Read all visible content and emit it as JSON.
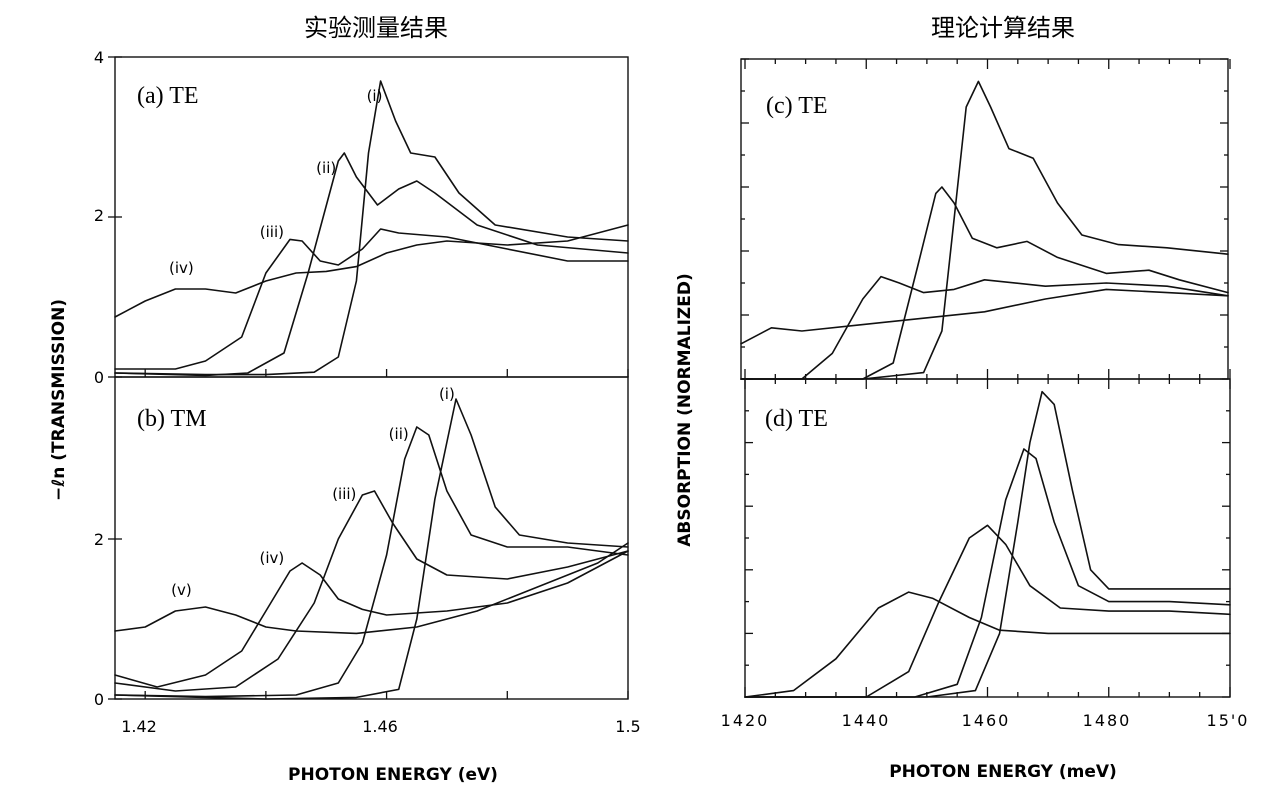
{
  "figure": {
    "left_header": "实验测量结果",
    "right_header": "理论计算结果"
  },
  "left": {
    "ylabel": "−ℓn (TRANSMISSION)",
    "xlabel": "PHOTON ENERGY (eV)",
    "xticks": [
      "1.42",
      "1.46",
      "1.5"
    ],
    "xlim": [
      1.415,
      1.5
    ],
    "top": {
      "panel_label": "(a) TE",
      "yticks": [
        "0",
        "2",
        "4"
      ],
      "ylim": [
        0,
        4
      ],
      "series": [
        {
          "label": "(i)",
          "points": [
            [
              1.415,
              0.05
            ],
            [
              1.43,
              0.03
            ],
            [
              1.44,
              0.03
            ],
            [
              1.448,
              0.06
            ],
            [
              1.452,
              0.25
            ],
            [
              1.455,
              1.2
            ],
            [
              1.457,
              2.8
            ],
            [
              1.459,
              3.7
            ],
            [
              1.4615,
              3.2
            ],
            [
              1.464,
              2.8
            ],
            [
              1.468,
              2.75
            ],
            [
              1.472,
              2.3
            ],
            [
              1.478,
              1.9
            ],
            [
              1.49,
              1.75
            ],
            [
              1.5,
              1.7
            ]
          ]
        },
        {
          "label": "(ii)",
          "points": [
            [
              1.415,
              0.05
            ],
            [
              1.43,
              0.02
            ],
            [
              1.437,
              0.05
            ],
            [
              1.443,
              0.3
            ],
            [
              1.447,
              1.3
            ],
            [
              1.452,
              2.7
            ],
            [
              1.453,
              2.8
            ],
            [
              1.455,
              2.5
            ],
            [
              1.4585,
              2.15
            ],
            [
              1.462,
              2.35
            ],
            [
              1.465,
              2.45
            ],
            [
              1.468,
              2.3
            ],
            [
              1.475,
              1.9
            ],
            [
              1.485,
              1.65
            ],
            [
              1.5,
              1.55
            ]
          ]
        },
        {
          "label": "(iii)",
          "points": [
            [
              1.415,
              0.1
            ],
            [
              1.425,
              0.1
            ],
            [
              1.43,
              0.2
            ],
            [
              1.436,
              0.5
            ],
            [
              1.44,
              1.3
            ],
            [
              1.444,
              1.72
            ],
            [
              1.446,
              1.7
            ],
            [
              1.449,
              1.45
            ],
            [
              1.452,
              1.4
            ],
            [
              1.456,
              1.6
            ],
            [
              1.459,
              1.85
            ],
            [
              1.462,
              1.8
            ],
            [
              1.47,
              1.75
            ],
            [
              1.48,
              1.6
            ],
            [
              1.49,
              1.45
            ],
            [
              1.5,
              1.45
            ]
          ]
        },
        {
          "label": "(iv)",
          "points": [
            [
              1.415,
              0.75
            ],
            [
              1.42,
              0.95
            ],
            [
              1.425,
              1.1
            ],
            [
              1.43,
              1.1
            ],
            [
              1.435,
              1.05
            ],
            [
              1.44,
              1.2
            ],
            [
              1.445,
              1.3
            ],
            [
              1.45,
              1.32
            ],
            [
              1.455,
              1.38
            ],
            [
              1.46,
              1.55
            ],
            [
              1.465,
              1.65
            ],
            [
              1.47,
              1.7
            ],
            [
              1.48,
              1.65
            ],
            [
              1.49,
              1.7
            ],
            [
              1.5,
              1.9
            ]
          ]
        }
      ],
      "label_pos": [
        [
          1.458,
          3.45
        ],
        [
          1.45,
          2.55
        ],
        [
          1.441,
          1.75
        ],
        [
          1.426,
          1.3
        ]
      ]
    },
    "bottom": {
      "panel_label": "(b) TM",
      "yticks": [
        "0",
        "2"
      ],
      "ylim": [
        0,
        4
      ],
      "series": [
        {
          "label": "(i)",
          "points": [
            [
              1.415,
              0.05
            ],
            [
              1.43,
              0.02
            ],
            [
              1.44,
              0.0
            ],
            [
              1.455,
              0.02
            ],
            [
              1.462,
              0.12
            ],
            [
              1.465,
              1.0
            ],
            [
              1.468,
              2.5
            ],
            [
              1.4715,
              3.75
            ],
            [
              1.474,
              3.3
            ],
            [
              1.478,
              2.4
            ],
            [
              1.482,
              2.05
            ],
            [
              1.49,
              1.95
            ],
            [
              1.5,
              1.9
            ]
          ]
        },
        {
          "label": "(ii)",
          "points": [
            [
              1.415,
              0.05
            ],
            [
              1.43,
              0.03
            ],
            [
              1.445,
              0.05
            ],
            [
              1.452,
              0.2
            ],
            [
              1.456,
              0.7
            ],
            [
              1.46,
              1.8
            ],
            [
              1.463,
              3.0
            ],
            [
              1.465,
              3.4
            ],
            [
              1.467,
              3.3
            ],
            [
              1.47,
              2.6
            ],
            [
              1.474,
              2.05
            ],
            [
              1.48,
              1.9
            ],
            [
              1.49,
              1.9
            ],
            [
              1.5,
              1.8
            ]
          ]
        },
        {
          "label": "(iii)",
          "points": [
            [
              1.415,
              0.2
            ],
            [
              1.425,
              0.1
            ],
            [
              1.435,
              0.15
            ],
            [
              1.442,
              0.5
            ],
            [
              1.448,
              1.2
            ],
            [
              1.452,
              2.0
            ],
            [
              1.456,
              2.55
            ],
            [
              1.458,
              2.6
            ],
            [
              1.461,
              2.2
            ],
            [
              1.465,
              1.75
            ],
            [
              1.47,
              1.55
            ],
            [
              1.48,
              1.5
            ],
            [
              1.49,
              1.65
            ],
            [
              1.5,
              1.85
            ]
          ]
        },
        {
          "label": "(iv)",
          "points": [
            [
              1.415,
              0.3
            ],
            [
              1.422,
              0.15
            ],
            [
              1.43,
              0.3
            ],
            [
              1.436,
              0.6
            ],
            [
              1.44,
              1.1
            ],
            [
              1.444,
              1.6
            ],
            [
              1.446,
              1.7
            ],
            [
              1.449,
              1.55
            ],
            [
              1.452,
              1.25
            ],
            [
              1.456,
              1.12
            ],
            [
              1.46,
              1.05
            ],
            [
              1.47,
              1.1
            ],
            [
              1.48,
              1.2
            ],
            [
              1.49,
              1.45
            ],
            [
              1.5,
              1.85
            ]
          ]
        },
        {
          "label": "(v)",
          "points": [
            [
              1.415,
              0.85
            ],
            [
              1.42,
              0.9
            ],
            [
              1.425,
              1.1
            ],
            [
              1.43,
              1.15
            ],
            [
              1.435,
              1.05
            ],
            [
              1.44,
              0.9
            ],
            [
              1.445,
              0.85
            ],
            [
              1.455,
              0.82
            ],
            [
              1.465,
              0.9
            ],
            [
              1.475,
              1.1
            ],
            [
              1.485,
              1.4
            ],
            [
              1.495,
              1.7
            ],
            [
              1.5,
              1.95
            ]
          ]
        }
      ],
      "label_pos": [
        [
          1.47,
          3.75
        ],
        [
          1.462,
          3.25
        ],
        [
          1.453,
          2.5
        ],
        [
          1.441,
          1.7
        ],
        [
          1.426,
          1.3
        ]
      ]
    }
  },
  "right": {
    "ylabel": "ABSORPTION (NORMALIZED)",
    "xlabel": "PHOTON ENERGY (meV)",
    "xticks": [
      "1420",
      "1440",
      "1460",
      "1480",
      "15'0"
    ],
    "xlim": [
      1420,
      1500
    ],
    "top": {
      "panel_label": "(c) TE",
      "ylim": [
        0,
        1
      ],
      "series": [
        {
          "label": "",
          "points": [
            [
              1420,
              0.0
            ],
            [
              1440,
              0.0
            ],
            [
              1450,
              0.02
            ],
            [
              1453,
              0.15
            ],
            [
              1455,
              0.5
            ],
            [
              1457,
              0.85
            ],
            [
              1459,
              0.93
            ],
            [
              1461,
              0.85
            ],
            [
              1464,
              0.72
            ],
            [
              1468,
              0.69
            ],
            [
              1472,
              0.55
            ],
            [
              1476,
              0.45
            ],
            [
              1482,
              0.42
            ],
            [
              1490,
              0.41
            ],
            [
              1500,
              0.39
            ]
          ]
        },
        {
          "label": "",
          "points": [
            [
              1420,
              0.0
            ],
            [
              1440,
              0.0
            ],
            [
              1445,
              0.05
            ],
            [
              1449,
              0.35
            ],
            [
              1452,
              0.58
            ],
            [
              1453,
              0.6
            ],
            [
              1455,
              0.55
            ],
            [
              1458,
              0.44
            ],
            [
              1462,
              0.41
            ],
            [
              1467,
              0.43
            ],
            [
              1472,
              0.38
            ],
            [
              1480,
              0.33
            ],
            [
              1487,
              0.34
            ],
            [
              1492,
              0.31
            ],
            [
              1500,
              0.27
            ]
          ]
        },
        {
          "label": "",
          "points": [
            [
              1420,
              0.0
            ],
            [
              1430,
              0.0
            ],
            [
              1435,
              0.08
            ],
            [
              1440,
              0.25
            ],
            [
              1443,
              0.32
            ],
            [
              1446,
              0.3
            ],
            [
              1450,
              0.27
            ],
            [
              1455,
              0.28
            ],
            [
              1460,
              0.31
            ],
            [
              1470,
              0.29
            ],
            [
              1480,
              0.3
            ],
            [
              1490,
              0.29
            ],
            [
              1500,
              0.26
            ]
          ]
        },
        {
          "label": "",
          "points": [
            [
              1420,
              0.11
            ],
            [
              1425,
              0.16
            ],
            [
              1430,
              0.15
            ],
            [
              1440,
              0.17
            ],
            [
              1450,
              0.19
            ],
            [
              1460,
              0.21
            ],
            [
              1470,
              0.25
            ],
            [
              1480,
              0.28
            ],
            [
              1490,
              0.27
            ],
            [
              1500,
              0.26
            ]
          ]
        }
      ]
    },
    "bottom": {
      "panel_label": "(d) TE",
      "ylim": [
        0,
        1
      ],
      "series": [
        {
          "label": "",
          "points": [
            [
              1420,
              0.0
            ],
            [
              1450,
              0.0
            ],
            [
              1458,
              0.02
            ],
            [
              1462,
              0.2
            ],
            [
              1465,
              0.55
            ],
            [
              1467,
              0.8
            ],
            [
              1469,
              0.96
            ],
            [
              1471,
              0.92
            ],
            [
              1474,
              0.65
            ],
            [
              1477,
              0.4
            ],
            [
              1480,
              0.34
            ],
            [
              1490,
              0.34
            ],
            [
              1500,
              0.34
            ]
          ]
        },
        {
          "label": "",
          "points": [
            [
              1420,
              0.0
            ],
            [
              1448,
              0.0
            ],
            [
              1455,
              0.04
            ],
            [
              1459,
              0.25
            ],
            [
              1463,
              0.62
            ],
            [
              1466,
              0.78
            ],
            [
              1468,
              0.75
            ],
            [
              1471,
              0.55
            ],
            [
              1475,
              0.35
            ],
            [
              1480,
              0.3
            ],
            [
              1490,
              0.3
            ],
            [
              1500,
              0.29
            ]
          ]
        },
        {
          "label": "",
          "points": [
            [
              1420,
              0.0
            ],
            [
              1440,
              0.0
            ],
            [
              1447,
              0.08
            ],
            [
              1452,
              0.3
            ],
            [
              1457,
              0.5
            ],
            [
              1460,
              0.54
            ],
            [
              1463,
              0.48
            ],
            [
              1467,
              0.35
            ],
            [
              1472,
              0.28
            ],
            [
              1480,
              0.27
            ],
            [
              1490,
              0.27
            ],
            [
              1500,
              0.26
            ]
          ]
        },
        {
          "label": "",
          "points": [
            [
              1420,
              0.0
            ],
            [
              1428,
              0.02
            ],
            [
              1435,
              0.12
            ],
            [
              1442,
              0.28
            ],
            [
              1447,
              0.33
            ],
            [
              1451,
              0.31
            ],
            [
              1457,
              0.25
            ],
            [
              1462,
              0.21
            ],
            [
              1470,
              0.2
            ],
            [
              1480,
              0.2
            ],
            [
              1490,
              0.2
            ],
            [
              1500,
              0.2
            ]
          ]
        }
      ]
    }
  },
  "chart_data": [
    {
      "type": "line",
      "title": "(a) TE",
      "xlabel": "PHOTON ENERGY (eV)",
      "ylabel": "−ℓn (TRANSMISSION)",
      "xlim": [
        1.415,
        1.5
      ],
      "ylim": [
        0,
        4
      ],
      "legend": "curve labels (i)–(iv) placed at peaks",
      "grid": false
    },
    {
      "type": "line",
      "title": "(b) TM",
      "xlabel": "PHOTON ENERGY (eV)",
      "ylabel": "−ℓn (TRANSMISSION)",
      "xlim": [
        1.415,
        1.5
      ],
      "ylim": [
        0,
        4
      ],
      "legend": "curve labels (i)–(v) placed at peaks",
      "grid": false
    },
    {
      "type": "line",
      "title": "(c) TE",
      "xlabel": "PHOTON ENERGY (meV)",
      "ylabel": "ABSORPTION (NORMALIZED)",
      "xlim": [
        1420,
        1500
      ],
      "grid": false
    },
    {
      "type": "line",
      "title": "(d) TE",
      "xlabel": "PHOTON ENERGY (meV)",
      "ylabel": "ABSORPTION (NORMALIZED)",
      "xlim": [
        1420,
        1500
      ],
      "grid": false
    }
  ]
}
